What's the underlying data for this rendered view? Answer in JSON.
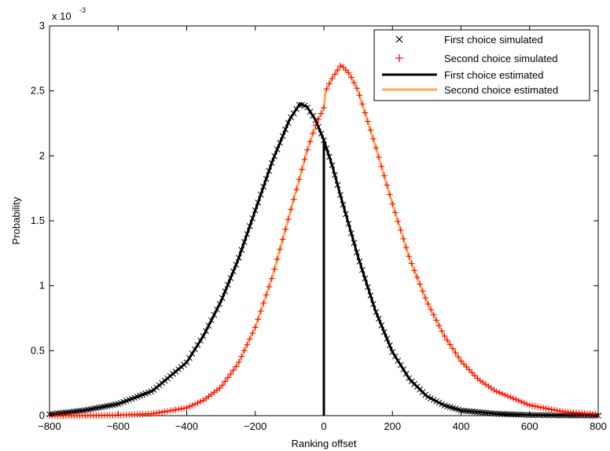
{
  "chart_data": {
    "type": "line",
    "title": "",
    "xlabel": "Ranking offset",
    "ylabel": "Probability",
    "y_exponent_label": "x 10",
    "y_exponent_power": "-3",
    "xlim": [
      -800,
      800
    ],
    "ylim": [
      0,
      0.003
    ],
    "x_ticks": [
      -800,
      -600,
      -400,
      -200,
      0,
      200,
      400,
      600,
      800
    ],
    "x_tick_labels": [
      "−800",
      "−600",
      "−400",
      "−200",
      "0",
      "200",
      "400",
      "600",
      "800"
    ],
    "y_ticks": [
      0,
      0.0005,
      0.001,
      0.0015,
      0.002,
      0.0025,
      0.003
    ],
    "y_tick_labels": [
      "0",
      "0.5",
      "1",
      "1.5",
      "2",
      "2.5",
      "3"
    ],
    "grid": false,
    "legend_position": "top-right",
    "series": [
      {
        "name": "First choice simulated",
        "kind": "marker-x",
        "color": "#000000",
        "x": [
          -800,
          -700,
          -600,
          -500,
          -400,
          -350,
          -300,
          -250,
          -200,
          -150,
          -100,
          -70,
          -50,
          -25,
          0,
          25,
          50,
          100,
          150,
          200,
          250,
          300,
          350,
          400,
          500,
          600,
          700,
          800
        ],
        "y": [
          1e-05,
          4e-05,
          9e-05,
          0.00019,
          0.00041,
          0.00062,
          0.00088,
          0.0012,
          0.00158,
          0.00196,
          0.00228,
          0.0024,
          0.00238,
          0.00228,
          0.00212,
          0.00192,
          0.00168,
          0.00122,
          0.00081,
          0.00049,
          0.00028,
          0.00015,
          8e-05,
          4e-05,
          1.5e-05,
          5e-06,
          2e-06,
          5e-07
        ]
      },
      {
        "name": "Second choice simulated",
        "kind": "marker-plus",
        "color": "#ff0000",
        "x": [
          -800,
          -700,
          -600,
          -500,
          -400,
          -350,
          -300,
          -250,
          -200,
          -150,
          -100,
          -50,
          -25,
          0,
          5,
          25,
          50,
          75,
          100,
          150,
          200,
          250,
          300,
          350,
          400,
          450,
          500,
          600,
          700,
          800
        ],
        "y": [
          0.0,
          0.0,
          3e-06,
          1.5e-05,
          6e-05,
          0.00012,
          0.00022,
          0.0004,
          0.00068,
          0.00107,
          0.00155,
          0.00203,
          0.00223,
          0.00237,
          0.0025,
          0.0026,
          0.0027,
          0.00263,
          0.0025,
          0.00208,
          0.00163,
          0.00121,
          0.00088,
          0.00062,
          0.00042,
          0.00028,
          0.00019,
          8e-05,
          3e-05,
          1e-05
        ]
      },
      {
        "name": "First choice estimated",
        "kind": "line",
        "color": "#000000",
        "x": [
          -800,
          -700,
          -600,
          -500,
          -400,
          -350,
          -300,
          -250,
          -200,
          -150,
          -100,
          -70,
          -50,
          -25,
          0,
          25,
          50,
          100,
          150,
          200,
          250,
          300,
          350,
          400,
          500,
          600,
          700,
          800
        ],
        "y": [
          1e-05,
          4e-05,
          9e-05,
          0.00019,
          0.00041,
          0.00062,
          0.00088,
          0.0012,
          0.00158,
          0.00196,
          0.00228,
          0.0024,
          0.00238,
          0.00228,
          0.00212,
          0.00192,
          0.00168,
          0.00122,
          0.00081,
          0.00049,
          0.00028,
          0.00015,
          8e-05,
          4e-05,
          1.5e-05,
          5e-06,
          2e-06,
          5e-07
        ]
      },
      {
        "name": "Second choice estimated",
        "kind": "line",
        "color": "#ffa858",
        "x": [
          -800,
          -700,
          -600,
          -500,
          -400,
          -350,
          -300,
          -250,
          -200,
          -150,
          -100,
          -50,
          -25,
          0,
          5,
          25,
          50,
          75,
          100,
          150,
          200,
          250,
          300,
          350,
          400,
          450,
          500,
          600,
          700,
          800
        ],
        "y": [
          0.0,
          0.0,
          3e-06,
          1.5e-05,
          6e-05,
          0.00012,
          0.00022,
          0.0004,
          0.00068,
          0.00107,
          0.00155,
          0.00203,
          0.00223,
          0.00237,
          0.0025,
          0.0026,
          0.0027,
          0.00263,
          0.0025,
          0.00208,
          0.00163,
          0.00121,
          0.00088,
          0.00062,
          0.00042,
          0.00028,
          0.00019,
          8e-05,
          3e-05,
          1e-05
        ]
      }
    ]
  }
}
